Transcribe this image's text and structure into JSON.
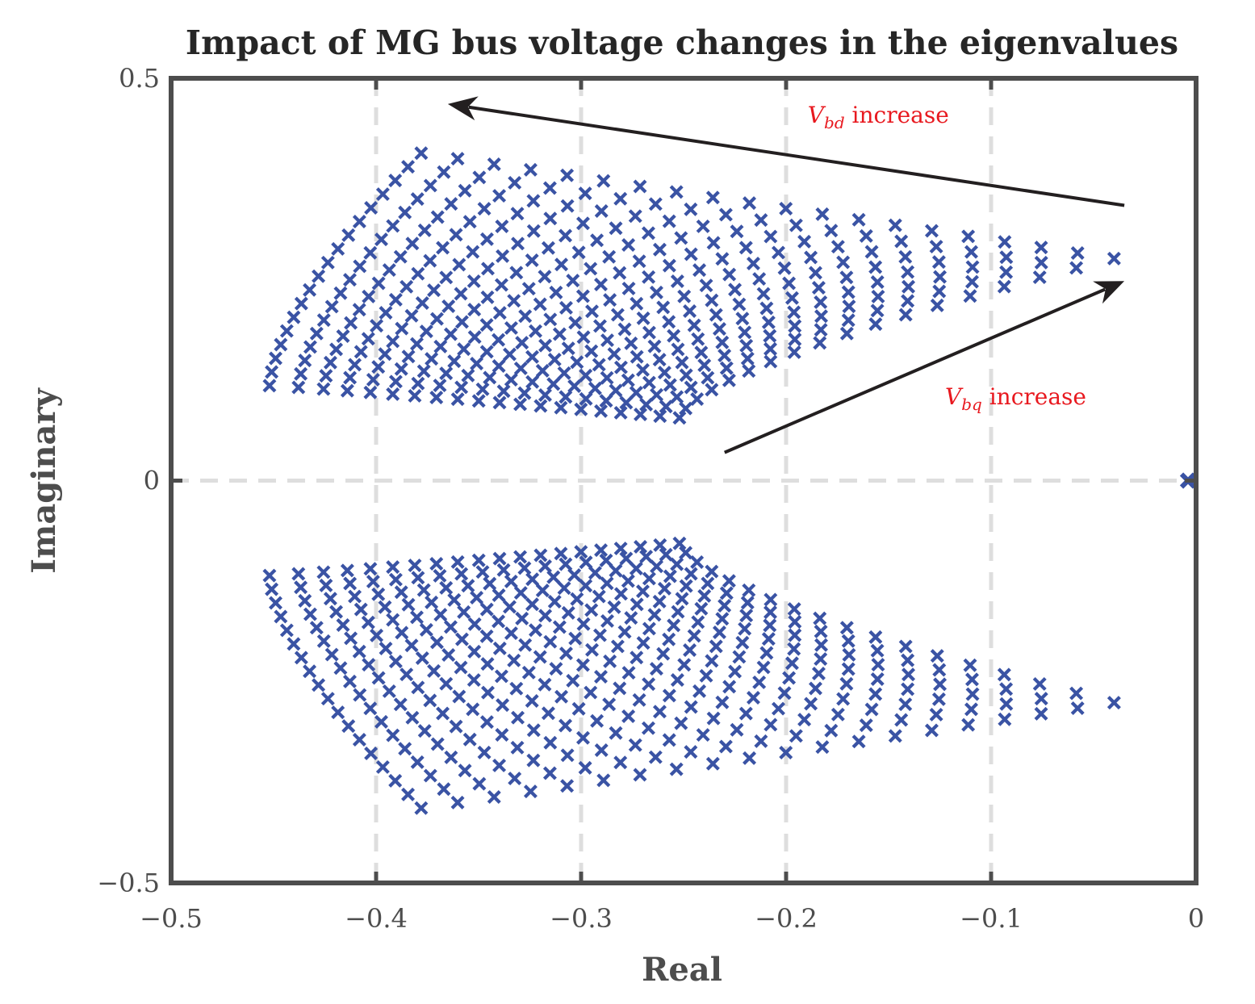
{
  "chart_data": {
    "type": "scatter",
    "title": "Impact of MG bus voltage changes in the eigenvalues",
    "xlabel": "Real",
    "ylabel": "Imaginary",
    "xlim": [
      -0.5,
      0
    ],
    "ylim": [
      -0.5,
      0.5
    ],
    "xticks": [
      -0.5,
      -0.4,
      -0.3,
      -0.2,
      -0.1,
      0
    ],
    "yticks": [
      -0.5,
      0,
      0.5
    ],
    "xtick_labels": [
      "−0.5",
      "−0.4",
      "−0.3",
      "−0.2",
      "−0.1",
      "0"
    ],
    "ytick_labels": [
      "−0.5",
      "0",
      "0.5"
    ],
    "grid": "dashed",
    "marker": "x",
    "marker_color": "#3a53a4",
    "fixed_point": {
      "x": 0,
      "y": 0
    },
    "families": {
      "count": 20,
      "points_per_family": 18,
      "bottom_point": {
        "x": -0.252,
        "y": 0.078
      },
      "vbd_high_top": {
        "x": -0.378,
        "y": 0.407
      },
      "vbd_high_bottom": {
        "x": -0.452,
        "y": 0.118
      },
      "vbq_high_top": {
        "x": -0.04,
        "y": 0.276
      },
      "vbq_high_bottom": {
        "x": -0.252,
        "y": 0.078
      },
      "mirror_about_real_axis": true
    },
    "arrows": [
      {
        "label_var": "V",
        "label_sub": "bd",
        "label_text": " increase",
        "from": {
          "x": -0.035,
          "y": 0.342
        },
        "to": {
          "x": -0.365,
          "y": 0.468
        },
        "label_at": {
          "x": -0.155,
          "y": 0.445
        }
      },
      {
        "label_var": "V",
        "label_sub": "bq",
        "label_text": " increase",
        "from": {
          "x": -0.23,
          "y": 0.035
        },
        "to": {
          "x": -0.035,
          "y": 0.248
        },
        "label_at": {
          "x": -0.088,
          "y": 0.095
        }
      }
    ],
    "annotation_color": "#e8191f",
    "arrow_color": "#231f20"
  }
}
